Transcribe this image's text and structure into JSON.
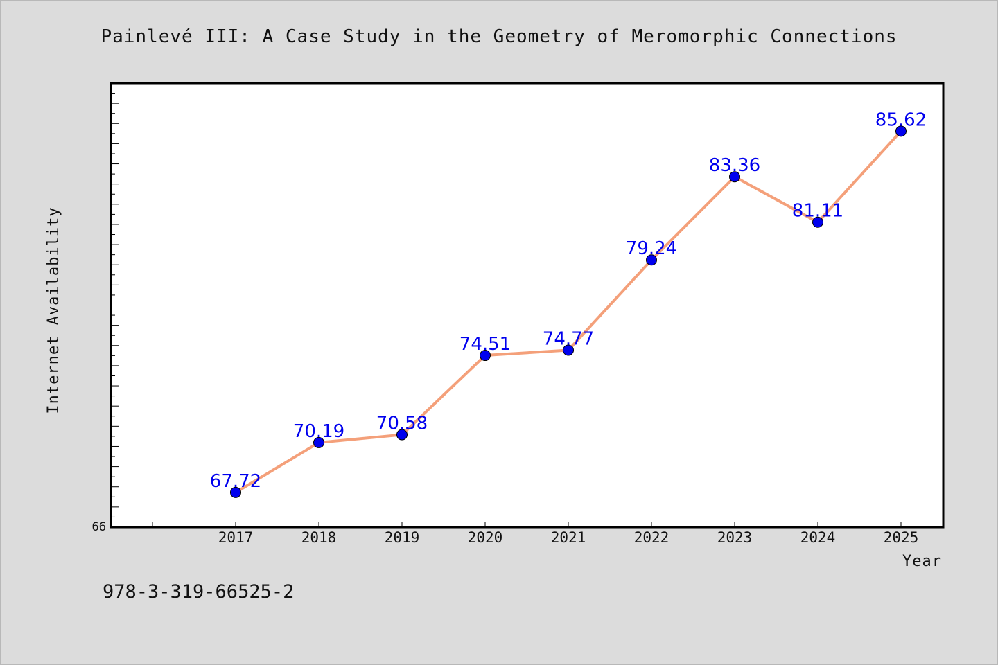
{
  "chart_data": {
    "type": "line",
    "title": "Painlevé III: A Case Study in the Geometry of Meromorphic Connections",
    "xlabel": "Year",
    "ylabel": "Internet Availability",
    "categories": [
      "2017",
      "2018",
      "2019",
      "2020",
      "2021",
      "2022",
      "2023",
      "2024",
      "2025"
    ],
    "series": [
      {
        "values": [
          67.72,
          70.19,
          70.58,
          74.51,
          74.77,
          79.24,
          83.36,
          81.11,
          85.62
        ],
        "labels": [
          "67.72",
          "70.19",
          "70.58",
          "74.51",
          "74.77",
          "79.24",
          "83.36",
          "81.11",
          "85.62"
        ]
      }
    ],
    "ylim": [
      66,
      88
    ],
    "ymin_label": "66",
    "grid": false,
    "legend": "none",
    "colors": {
      "line": "#f4a07a",
      "marker": "#0000ee",
      "label": "#0000ee",
      "background": "#dcdcdc",
      "plot": "#ffffff"
    }
  },
  "footer": {
    "isbn": "978-3-319-66525-2"
  }
}
